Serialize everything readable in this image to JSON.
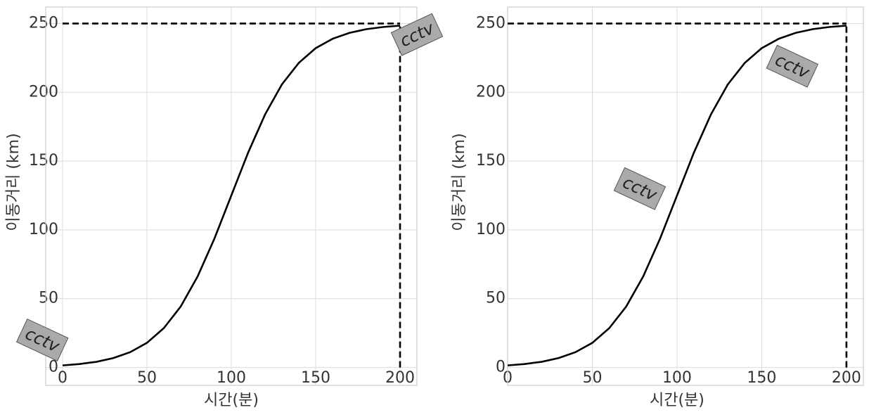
{
  "chart_data": [
    {
      "type": "line",
      "xlabel": "시간(분)",
      "ylabel": "이동거리 (km)",
      "x": [
        0,
        10,
        20,
        30,
        40,
        50,
        60,
        70,
        80,
        90,
        100,
        110,
        120,
        130,
        140,
        150,
        160,
        170,
        180,
        190,
        200
      ],
      "series": [
        {
          "color": "#000000",
          "values": [
            1.5,
            2.5,
            4.1,
            6.8,
            11.1,
            17.9,
            28.6,
            44.3,
            66.1,
            93.7,
            125,
            156.3,
            183.9,
            205.8,
            221.4,
            232.1,
            238.9,
            243.2,
            245.9,
            247.5,
            248.5
          ]
        }
      ],
      "hlines": [
        {
          "y": 250,
          "xmin": 0,
          "xmax": 200
        }
      ],
      "vlines": [
        {
          "x": 200,
          "ymin": 0,
          "ymax": 250
        }
      ],
      "annotations": [
        {
          "text": "cctv",
          "x": -12,
          "y": 20
        },
        {
          "text": "cctv",
          "x": 210,
          "y": 242
        }
      ],
      "xlim": [
        -10,
        210
      ],
      "ylim": [
        -13,
        262
      ],
      "xticks": [
        0,
        50,
        100,
        150,
        200
      ],
      "yticks": [
        0,
        50,
        100,
        150,
        200,
        250
      ],
      "grid": true
    },
    {
      "type": "line",
      "xlabel": "시간(분)",
      "ylabel": "이동거리 (km)",
      "x": [
        0,
        10,
        20,
        30,
        40,
        50,
        60,
        70,
        80,
        90,
        100,
        110,
        120,
        130,
        140,
        150,
        160,
        170,
        180,
        190,
        200
      ],
      "series": [
        {
          "color": "#000000",
          "values": [
            1.5,
            2.5,
            4.1,
            6.8,
            11.1,
            17.9,
            28.6,
            44.3,
            66.1,
            93.7,
            125,
            156.3,
            183.9,
            205.8,
            221.4,
            232.1,
            238.9,
            243.2,
            245.9,
            247.5,
            248.5
          ]
        }
      ],
      "hlines": [
        {
          "y": 250,
          "xmin": 0,
          "xmax": 200
        }
      ],
      "vlines": [
        {
          "x": 200,
          "ymin": 0,
          "ymax": 250
        }
      ],
      "annotations": [
        {
          "text": "cctv",
          "x": 168,
          "y": 219
        },
        {
          "text": "cctv",
          "x": 78,
          "y": 130
        }
      ],
      "xlim": [
        0,
        210
      ],
      "ylim": [
        -13,
        262
      ],
      "xticks": [
        0,
        50,
        100,
        150,
        200
      ],
      "yticks": [
        0,
        50,
        100,
        150,
        200,
        250
      ],
      "grid": true
    }
  ]
}
